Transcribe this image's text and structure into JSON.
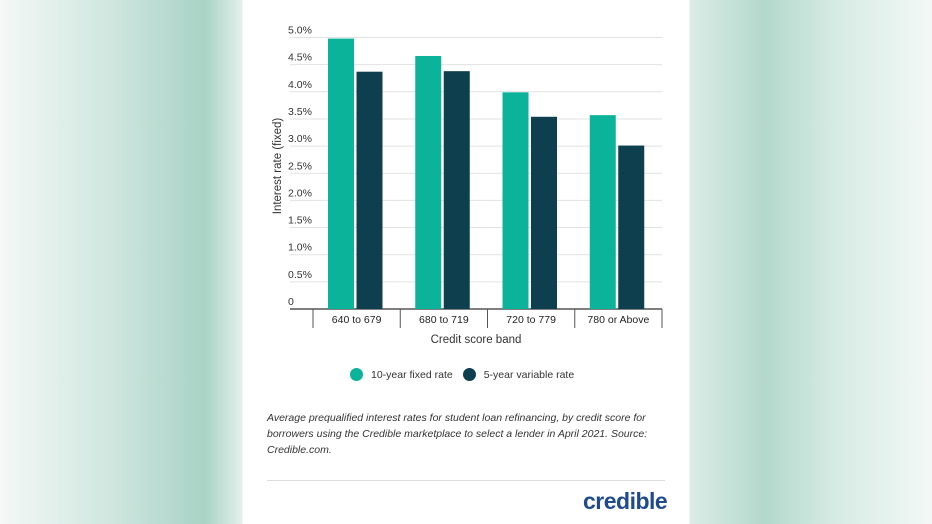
{
  "chart_data": {
    "type": "bar",
    "categories": [
      "640 to 679",
      "680 to 719",
      "720 to 779",
      "780 or Above"
    ],
    "series": [
      {
        "name": "10-year fixed rate",
        "values": [
          4.98,
          4.66,
          3.99,
          3.57
        ],
        "color": "#0ab39a"
      },
      {
        "name": "5-year variable rate",
        "values": [
          4.37,
          4.38,
          3.54,
          3.01
        ],
        "color": "#0e3f4f"
      }
    ],
    "xlabel": "Credit score band",
    "ylabel": "Interest rate (fixed)",
    "ylim": [
      0,
      5.0
    ],
    "yticks": [
      "0",
      "0.5%",
      "1.0%",
      "1.5%",
      "2.0%",
      "2.5%",
      "3.0%",
      "3.5%",
      "4.0%",
      "4.5%",
      "5.0%"
    ],
    "grid": true,
    "legend": "bottom"
  },
  "note": "Average prequalified interest rates for student loan refinancing, by credit score for borrowers using the Credible marketplace to select a lender in April 2021. Source: Credible.com.",
  "logo": "credible"
}
